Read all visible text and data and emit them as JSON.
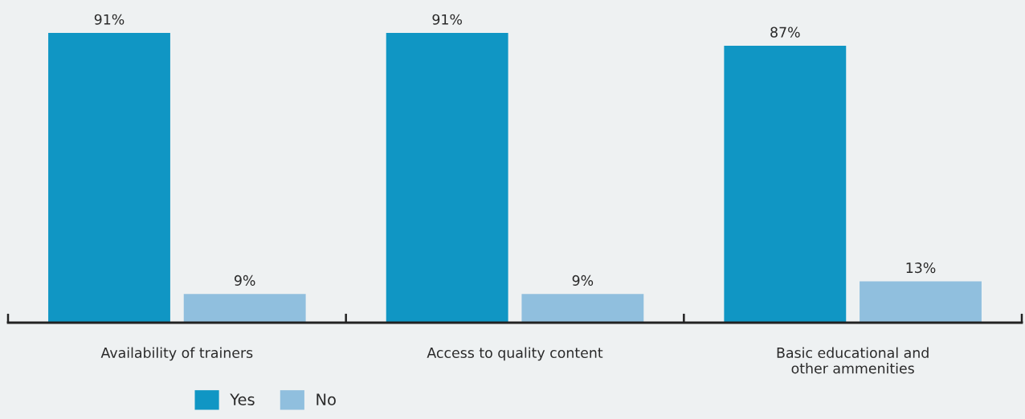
{
  "chart_data": {
    "type": "bar",
    "categories": [
      "Availability of trainers",
      "Access to quality content",
      "Basic educational and\nother ammenities"
    ],
    "series": [
      {
        "name": "Yes",
        "color": "#1096c4",
        "values": [
          91,
          91,
          87
        ],
        "value_labels": [
          "91%",
          "91%",
          "87%"
        ]
      },
      {
        "name": "No",
        "color": "#90bfde",
        "values": [
          9,
          9,
          13
        ],
        "value_labels": [
          "9%",
          "9%",
          "13%"
        ]
      }
    ],
    "legend": "bottom",
    "grid": false
  }
}
